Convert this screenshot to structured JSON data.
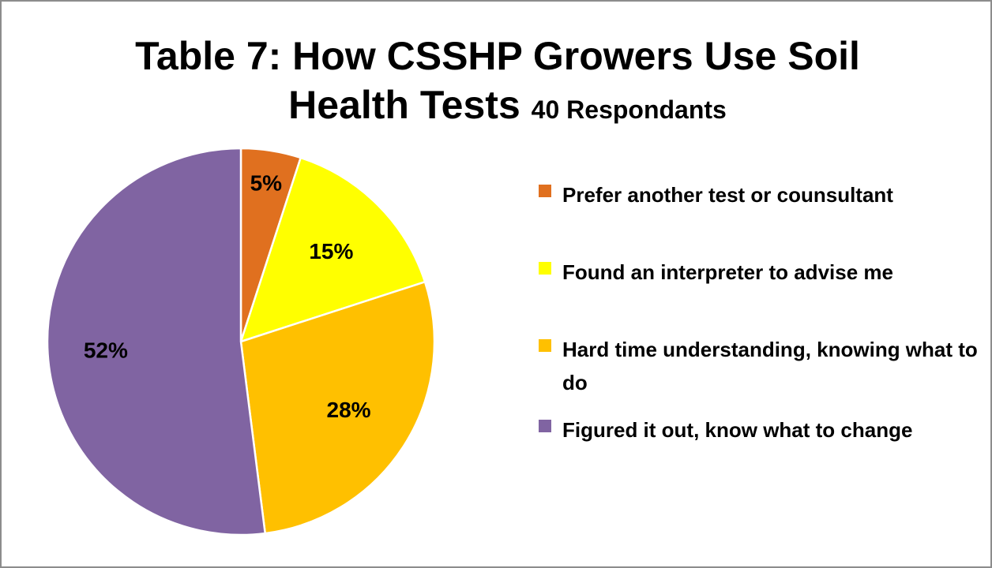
{
  "chart_data": {
    "type": "pie",
    "title": "Table 7: How CSSHP Growers Use Soil",
    "title_line2": "Health Tests",
    "subtitle": "40 Respondants",
    "categories": [
      "Prefer another test or counsultant",
      "Found an interpreter to advise me",
      "Hard time understanding, knowing what to do",
      "Figured it out, know what to change"
    ],
    "values": [
      5,
      15,
      28,
      52
    ],
    "data_labels": [
      "5%",
      "15%",
      "28%",
      "52%"
    ],
    "colors": [
      "#e0701f",
      "#ffff00",
      "#ffc000",
      "#8064a2"
    ],
    "legend_position": "right",
    "start_angle": "12 o'clock",
    "direction": "clockwise"
  }
}
